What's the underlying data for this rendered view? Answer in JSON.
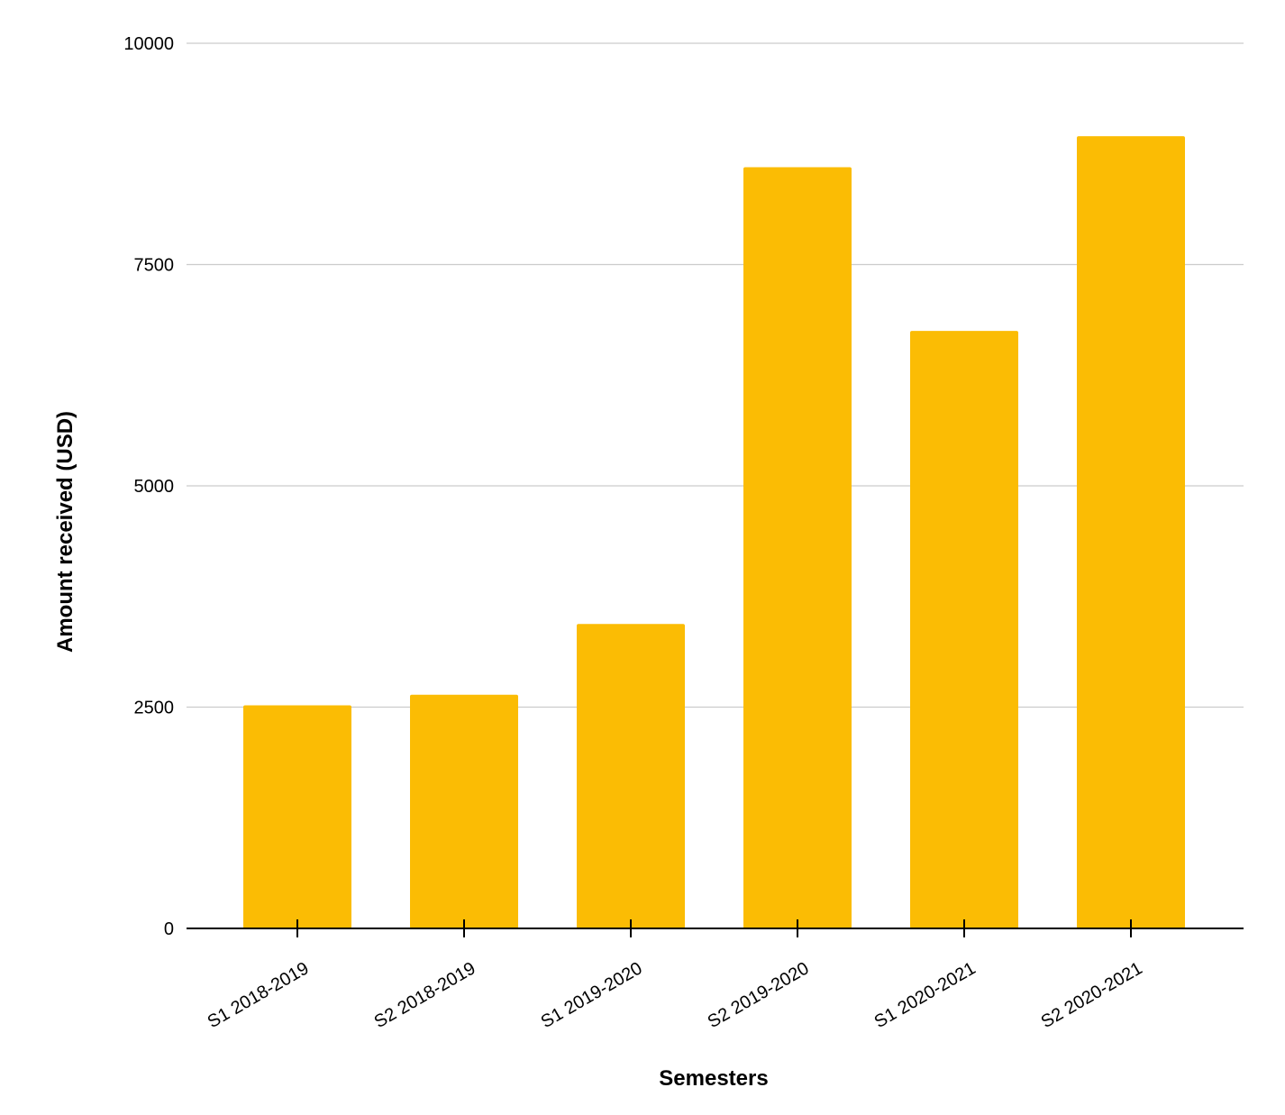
{
  "chart_data": {
    "type": "bar",
    "title": "",
    "xlabel": "Semesters",
    "ylabel": "Amount received (USD)",
    "categories": [
      "S1 2018-2019",
      "S2 2018-2019",
      "S1 2019-2020",
      "S2 2019-2020",
      "S1 2020-2021",
      "S2 2020-2021"
    ],
    "series": [
      {
        "values": [
          2520,
          2640,
          3440,
          8600,
          6750,
          8950
        ]
      }
    ],
    "ylim": [
      0,
      10000
    ],
    "yticks": [
      "0",
      "2500",
      "5000",
      "7500",
      "10000"
    ],
    "grid": true,
    "legend": "none",
    "colors": {
      "bar": "#FBBC04",
      "grid": "#CCCCCC",
      "axis": "#000000"
    }
  }
}
